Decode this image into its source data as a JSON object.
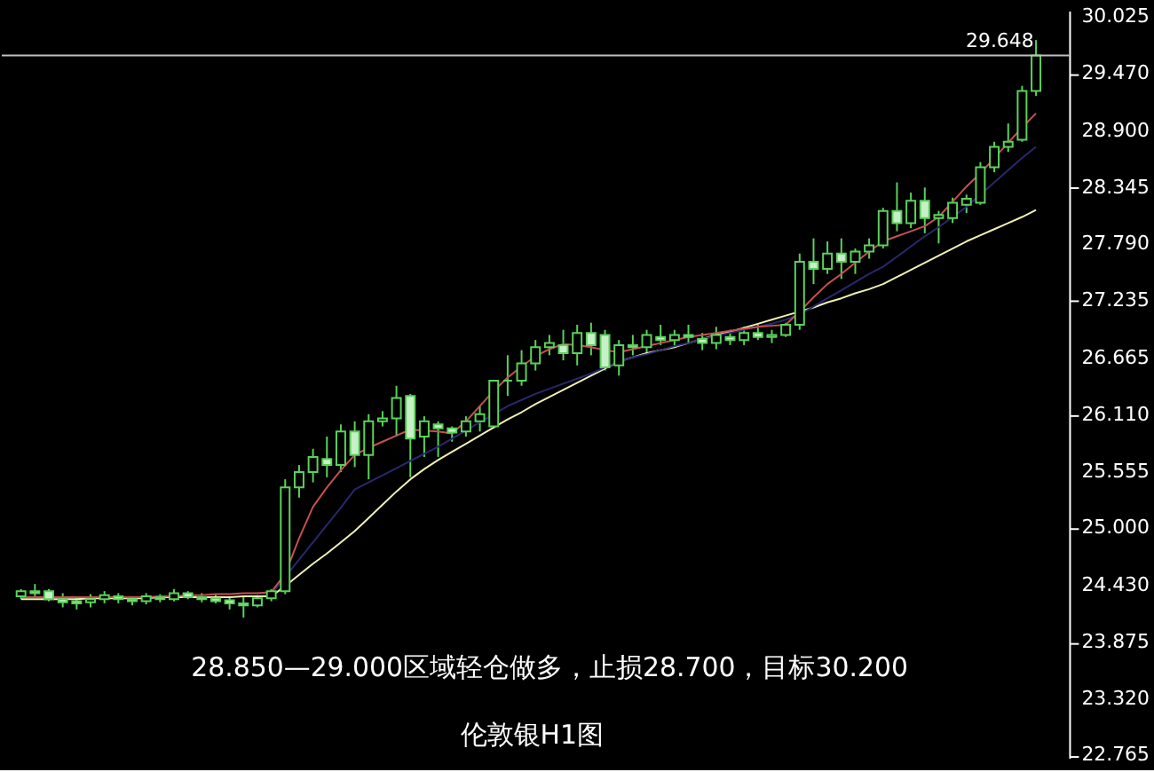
{
  "chart_data": {
    "type": "candlestick",
    "annotations": [
      "28.850—29.000区域轻仓做多，止损28.700，目标30.200",
      "伦敦银H1图"
    ],
    "categories": [
      null,
      null,
      null,
      null,
      null,
      null,
      null,
      null,
      null,
      null,
      null,
      null,
      null,
      null,
      null,
      null,
      null,
      null,
      null,
      null,
      null,
      null,
      null,
      null,
      null,
      null,
      null,
      null,
      null,
      null,
      null,
      null,
      null,
      null,
      null,
      null,
      null,
      null,
      null,
      null,
      null,
      null,
      null,
      null,
      null,
      null,
      null,
      null,
      null,
      null,
      null,
      null,
      null,
      null,
      null,
      null,
      null,
      null,
      null,
      null,
      null,
      null,
      null,
      null,
      null,
      null,
      null,
      null,
      null,
      null,
      null,
      null,
      null,
      null
    ],
    "series": [
      {
        "color": "#5ad25a",
        "ohlc": [
          [
            24.33,
            24.4,
            24.3,
            24.38
          ],
          [
            24.38,
            24.45,
            24.33,
            24.36
          ],
          [
            24.38,
            24.4,
            24.28,
            24.3
          ],
          [
            24.3,
            24.36,
            24.22,
            24.27
          ],
          [
            24.28,
            24.32,
            24.2,
            24.26
          ],
          [
            24.27,
            24.35,
            24.22,
            24.3
          ],
          [
            24.3,
            24.38,
            24.26,
            24.34
          ],
          [
            24.33,
            24.36,
            24.26,
            24.3
          ],
          [
            24.3,
            24.33,
            24.24,
            24.28
          ],
          [
            24.28,
            24.36,
            24.25,
            24.33
          ],
          [
            24.32,
            24.35,
            24.27,
            24.3
          ],
          [
            24.3,
            24.4,
            24.28,
            24.36
          ],
          [
            24.36,
            24.38,
            24.3,
            24.32
          ],
          [
            24.32,
            24.36,
            24.27,
            24.3
          ],
          [
            24.31,
            24.35,
            24.26,
            24.28
          ],
          [
            24.29,
            24.33,
            24.2,
            24.26
          ],
          [
            24.26,
            24.32,
            24.12,
            24.24
          ],
          [
            24.24,
            24.34,
            24.22,
            24.31
          ],
          [
            24.31,
            24.4,
            24.28,
            24.38
          ],
          [
            24.38,
            25.48,
            24.35,
            25.4
          ],
          [
            25.4,
            25.62,
            25.3,
            25.55
          ],
          [
            25.55,
            25.78,
            25.45,
            25.7
          ],
          [
            25.68,
            25.9,
            25.5,
            25.62
          ],
          [
            25.62,
            26.02,
            25.55,
            25.95
          ],
          [
            25.95,
            26.05,
            25.6,
            25.72
          ],
          [
            25.72,
            26.12,
            25.48,
            26.05
          ],
          [
            26.05,
            26.15,
            26.0,
            26.08
          ],
          [
            26.08,
            26.4,
            25.9,
            26.28
          ],
          [
            26.3,
            26.32,
            25.5,
            25.88
          ],
          [
            25.9,
            26.1,
            25.7,
            26.05
          ],
          [
            26.02,
            26.05,
            25.7,
            25.98
          ],
          [
            25.98,
            26.0,
            25.85,
            25.94
          ],
          [
            25.95,
            26.1,
            25.9,
            26.05
          ],
          [
            26.05,
            26.2,
            25.95,
            26.12
          ],
          [
            26.0,
            26.45,
            25.98,
            26.45
          ],
          [
            26.45,
            26.7,
            26.3,
            26.45
          ],
          [
            26.45,
            26.75,
            26.4,
            26.62
          ],
          [
            26.62,
            26.85,
            26.55,
            26.78
          ],
          [
            26.78,
            26.9,
            26.7,
            26.82
          ],
          [
            26.8,
            26.95,
            26.65,
            26.72
          ],
          [
            26.72,
            27.0,
            26.6,
            26.92
          ],
          [
            26.92,
            27.02,
            26.7,
            26.8
          ],
          [
            26.9,
            26.95,
            26.55,
            26.58
          ],
          [
            26.6,
            26.85,
            26.5,
            26.8
          ],
          [
            26.8,
            26.9,
            26.7,
            26.78
          ],
          [
            26.78,
            26.95,
            26.72,
            26.9
          ],
          [
            26.88,
            27.0,
            26.8,
            26.85
          ],
          [
            26.85,
            26.95,
            26.78,
            26.9
          ],
          [
            26.9,
            27.0,
            26.82,
            26.88
          ],
          [
            26.86,
            26.92,
            26.75,
            26.82
          ],
          [
            26.82,
            26.98,
            26.76,
            26.9
          ],
          [
            26.88,
            26.95,
            26.8,
            26.85
          ],
          [
            26.85,
            26.98,
            26.8,
            26.92
          ],
          [
            26.92,
            27.0,
            26.85,
            26.88
          ],
          [
            26.88,
            26.95,
            26.82,
            26.9
          ],
          [
            26.9,
            27.02,
            26.88,
            27.0
          ],
          [
            27.0,
            27.7,
            26.95,
            27.62
          ],
          [
            27.62,
            27.85,
            27.4,
            27.55
          ],
          [
            27.55,
            27.82,
            27.5,
            27.7
          ],
          [
            27.7,
            27.85,
            27.45,
            27.62
          ],
          [
            27.62,
            27.75,
            27.5,
            27.72
          ],
          [
            27.72,
            27.85,
            27.65,
            27.78
          ],
          [
            27.78,
            28.15,
            27.75,
            28.12
          ],
          [
            28.12,
            28.4,
            27.92,
            28.0
          ],
          [
            28.0,
            28.3,
            27.95,
            28.22
          ],
          [
            28.22,
            28.35,
            27.9,
            28.05
          ],
          [
            28.05,
            28.12,
            27.8,
            28.08
          ],
          [
            28.05,
            28.25,
            28.0,
            28.2
          ],
          [
            28.18,
            28.28,
            28.1,
            28.24
          ],
          [
            28.2,
            28.6,
            28.18,
            28.55
          ],
          [
            28.55,
            28.8,
            28.5,
            28.75
          ],
          [
            28.75,
            28.98,
            28.7,
            28.8
          ],
          [
            28.82,
            29.35,
            28.8,
            29.3
          ],
          [
            29.3,
            29.8,
            29.25,
            29.648
          ]
        ]
      },
      {
        "type": "line",
        "color": "#f0f0b4",
        "values": [
          24.3,
          24.3,
          24.3,
          24.3,
          24.3,
          24.31,
          24.31,
          24.31,
          24.31,
          24.31,
          24.32,
          24.32,
          24.32,
          24.32,
          24.32,
          24.32,
          24.33,
          24.33,
          24.33,
          24.43,
          24.54,
          24.65,
          24.75,
          24.86,
          24.97,
          25.1,
          25.23,
          25.36,
          25.48,
          25.58,
          25.67,
          25.75,
          25.83,
          25.91,
          25.99,
          26.07,
          26.14,
          26.22,
          26.29,
          26.36,
          26.43,
          26.5,
          26.57,
          26.64,
          26.68,
          26.72,
          26.75,
          26.78,
          26.82,
          26.86,
          26.9,
          26.93,
          26.97,
          27.01,
          27.05,
          27.09,
          27.13,
          27.17,
          27.22,
          27.26,
          27.31,
          27.35,
          27.4,
          27.47,
          27.54,
          27.61,
          27.68,
          27.75,
          27.82,
          27.88,
          27.94,
          28.0,
          28.06,
          28.13
        ]
      },
      {
        "type": "line",
        "color": "#28286e",
        "values": [
          null,
          null,
          null,
          null,
          null,
          null,
          null,
          null,
          null,
          null,
          null,
          null,
          null,
          null,
          null,
          null,
          null,
          null,
          24.35,
          24.52,
          24.69,
          24.86,
          25.03,
          25.2,
          25.38,
          25.45,
          25.52,
          25.59,
          25.66,
          25.73,
          25.8,
          25.88,
          25.96,
          26.04,
          26.12,
          26.2,
          26.26,
          26.32,
          26.37,
          26.42,
          26.47,
          26.52,
          26.58,
          26.64,
          26.68,
          26.71,
          26.75,
          26.79,
          26.82,
          26.86,
          26.89,
          26.92,
          26.95,
          26.98,
          27.01,
          27.05,
          27.1,
          27.18,
          27.26,
          27.34,
          27.42,
          27.5,
          27.57,
          27.67,
          27.77,
          27.87,
          27.96,
          28.06,
          28.16,
          28.28,
          28.4,
          28.52,
          28.64,
          28.75
        ]
      },
      {
        "type": "line",
        "color": "#c85050",
        "values": [
          24.32,
          24.32,
          24.32,
          24.32,
          24.32,
          24.32,
          24.32,
          24.32,
          24.32,
          24.32,
          24.33,
          24.33,
          24.34,
          24.34,
          24.35,
          24.35,
          24.36,
          24.36,
          24.37,
          24.55,
          24.9,
          25.21,
          25.4,
          25.57,
          25.72,
          25.79,
          25.85,
          25.91,
          25.97,
          25.96,
          25.95,
          25.93,
          26.05,
          26.2,
          26.35,
          26.48,
          26.59,
          26.69,
          26.76,
          26.81,
          26.8,
          26.78,
          26.75,
          26.73,
          26.76,
          26.79,
          26.82,
          26.85,
          26.88,
          26.9,
          26.92,
          26.94,
          26.96,
          26.98,
          26.99,
          27.0,
          27.13,
          27.27,
          27.4,
          27.5,
          27.61,
          27.72,
          27.82,
          27.87,
          27.92,
          27.97,
          28.06,
          28.21,
          28.36,
          28.49,
          28.64,
          28.79,
          28.94,
          29.08
        ]
      }
    ],
    "ylim": [
      22.74,
      30.09
    ],
    "yticks": [
      {
        "value": 30.025,
        "label": "30.025"
      },
      {
        "value": 29.47,
        "label": "29.470"
      },
      {
        "value": 28.9,
        "label": "28.900"
      },
      {
        "value": 28.345,
        "label": "28.345"
      },
      {
        "value": 27.79,
        "label": "27.790"
      },
      {
        "value": 27.235,
        "label": "27.235"
      },
      {
        "value": 26.665,
        "label": "26.665"
      },
      {
        "value": 26.11,
        "label": "26.110"
      },
      {
        "value": 25.555,
        "label": "25.555"
      },
      {
        "value": 25.0,
        "label": "25.000"
      },
      {
        "value": 24.43,
        "label": "24.430"
      },
      {
        "value": 23.875,
        "label": "23.875"
      },
      {
        "value": 23.32,
        "label": "23.320"
      },
      {
        "value": 22.765,
        "label": "22.765"
      }
    ],
    "ref_lines": [
      {
        "axis": "y",
        "value": 29.648,
        "label": "29.648",
        "color": "#c0c0c0"
      }
    ],
    "grid": false,
    "tick_labels": "y"
  }
}
